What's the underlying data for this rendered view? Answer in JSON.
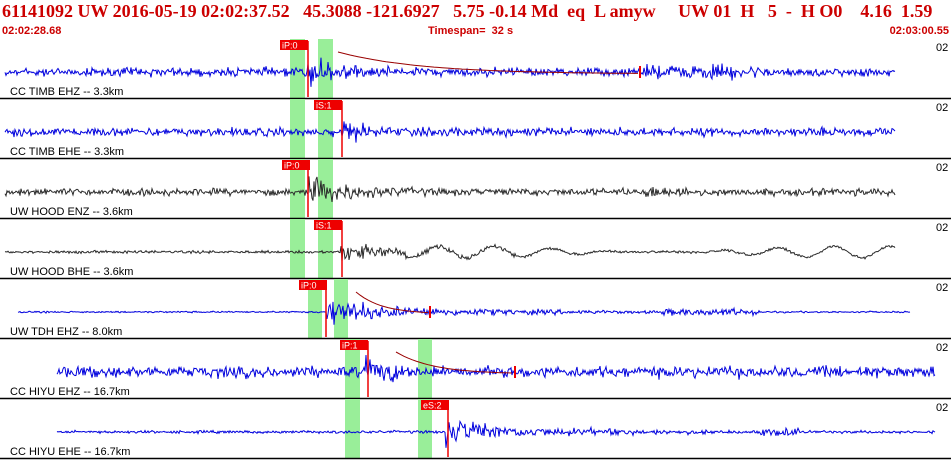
{
  "header": {
    "title": "61141092 UW 2016-05-19 02:02:37.52   45.3088 -121.6927   5.75 -0.14 Md  eq  L amyw     UW 01  H   5  -  H O0    4.16  1.59",
    "start_time": "02:02:28.68",
    "timespan": "Timespan=  32 s",
    "end_time": "02:03:00.55"
  },
  "colors": {
    "header_text": "#cc0000",
    "blue_trace": "#0000dd",
    "black_trace": "#2a2a2a",
    "pick_box": "#ee0000",
    "pick_window": "#99ee99"
  },
  "traces": [
    {
      "label": "CC TIMB EHZ -- 3.3km",
      "scale": "02",
      "color": "blue",
      "picks": [
        "iP:0"
      ]
    },
    {
      "label": "CC TIMB EHE -- 3.3km",
      "scale": "02",
      "color": "blue",
      "picks": [
        "iS:1"
      ]
    },
    {
      "label": "UW HOOD ENZ -- 3.6km",
      "scale": "02",
      "color": "black",
      "picks": [
        "iP:0"
      ]
    },
    {
      "label": "UW HOOD BHE -- 3.6km",
      "scale": "02",
      "color": "black",
      "picks": [
        "iS:1"
      ]
    },
    {
      "label": "UW TDH EHZ -- 8.0km",
      "scale": "02",
      "color": "blue",
      "picks": [
        "iP:0"
      ]
    },
    {
      "label": "CC HIYU EHZ -- 16.7km",
      "scale": "02",
      "color": "blue",
      "picks": [
        "iP:1"
      ]
    },
    {
      "label": "CC HIYU EHE -- 16.7km",
      "scale": "02",
      "color": "blue",
      "picks": [
        "eS:2"
      ]
    }
  ]
}
